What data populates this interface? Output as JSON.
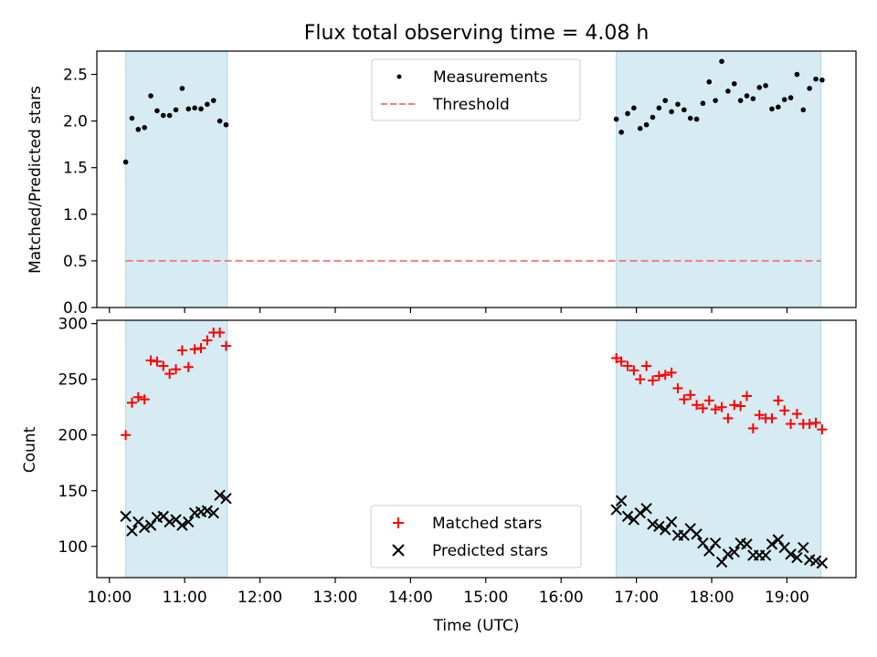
{
  "title": "Flux total observing time = 4.08 h",
  "xlabel": "Time (UTC)",
  "xticks": [
    "10:00",
    "11:00",
    "12:00",
    "13:00",
    "14:00",
    "15:00",
    "16:00",
    "17:00",
    "18:00",
    "19:00"
  ],
  "colors": {
    "shade": "#add8e6",
    "threshold": "#f08080",
    "matched": "#ff0000",
    "predicted": "#000000",
    "measurement": "#000000"
  },
  "chart_data": [
    {
      "type": "scatter",
      "ylabel": "Matched/Predicted stars",
      "xlim": [
        "09:50",
        "19:55"
      ],
      "ylim": [
        0,
        2.75
      ],
      "yticks": [
        "0.0",
        "0.5",
        "1.0",
        "1.5",
        "2.0",
        "2.5"
      ],
      "legend": {
        "placement": "upper center",
        "entries": [
          "Measurements",
          "Threshold"
        ]
      },
      "shaded_intervals": [
        [
          "10:13",
          "11:34"
        ],
        [
          "16:44",
          "19:27"
        ]
      ],
      "threshold": 0.5,
      "series": [
        {
          "name": "Measurements",
          "x": [
            "10:13",
            "10:18",
            "10:23",
            "10:28",
            "10:33",
            "10:38",
            "10:43",
            "10:48",
            "10:53",
            "10:58",
            "11:03",
            "11:08",
            "11:13",
            "11:18",
            "11:23",
            "11:28",
            "11:33",
            "16:44",
            "16:48",
            "16:53",
            "16:58",
            "17:03",
            "17:08",
            "17:13",
            "17:18",
            "17:23",
            "17:28",
            "17:33",
            "17:38",
            "17:43",
            "17:48",
            "17:53",
            "17:58",
            "18:03",
            "18:08",
            "18:13",
            "18:18",
            "18:23",
            "18:28",
            "18:33",
            "18:38",
            "18:43",
            "18:48",
            "18:53",
            "18:58",
            "19:03",
            "19:08",
            "19:13",
            "19:18",
            "19:23",
            "19:28"
          ],
          "y": [
            1.56,
            2.03,
            1.91,
            1.93,
            2.27,
            2.11,
            2.06,
            2.06,
            2.12,
            2.35,
            2.13,
            2.14,
            2.13,
            2.18,
            2.22,
            2.0,
            1.96,
            2.02,
            1.88,
            2.08,
            2.14,
            1.92,
            1.96,
            2.04,
            2.14,
            2.22,
            2.1,
            2.18,
            2.12,
            2.03,
            2.02,
            2.19,
            2.42,
            2.22,
            2.64,
            2.32,
            2.4,
            2.22,
            2.27,
            2.24,
            2.36,
            2.38,
            2.13,
            2.15,
            2.23,
            2.25,
            2.5,
            2.12,
            2.35,
            2.45,
            2.44
          ]
        }
      ]
    },
    {
      "type": "scatter",
      "ylabel": "Count",
      "xlim": [
        "09:50",
        "19:55"
      ],
      "ylim": [
        72,
        303
      ],
      "yticks": [
        "100",
        "150",
        "200",
        "250",
        "300"
      ],
      "legend": {
        "placement": "lower center",
        "entries": [
          "Matched stars",
          "Predicted stars"
        ]
      },
      "shaded_intervals": [
        [
          "10:13",
          "11:34"
        ],
        [
          "16:44",
          "19:27"
        ]
      ],
      "series": [
        {
          "name": "Matched stars",
          "x": [
            "10:13",
            "10:18",
            "10:23",
            "10:28",
            "10:33",
            "10:38",
            "10:43",
            "10:48",
            "10:53",
            "10:58",
            "11:03",
            "11:08",
            "11:13",
            "11:18",
            "11:23",
            "11:28",
            "11:33",
            "16:44",
            "16:48",
            "16:53",
            "16:58",
            "17:03",
            "17:08",
            "17:13",
            "17:18",
            "17:23",
            "17:28",
            "17:33",
            "17:38",
            "17:43",
            "17:48",
            "17:53",
            "17:58",
            "18:03",
            "18:08",
            "18:13",
            "18:18",
            "18:23",
            "18:28",
            "18:33",
            "18:38",
            "18:43",
            "18:48",
            "18:53",
            "18:58",
            "19:03",
            "19:08",
            "19:13",
            "19:18",
            "19:23",
            "19:28"
          ],
          "y": [
            200,
            229,
            234,
            232,
            267,
            266,
            262,
            255,
            259,
            276,
            261,
            277,
            278,
            285,
            292,
            292,
            280,
            269,
            266,
            262,
            258,
            250,
            262,
            249,
            253,
            254,
            256,
            242,
            232,
            236,
            227,
            224,
            231,
            223,
            225,
            215,
            227,
            226,
            235,
            206,
            218,
            215,
            215,
            231,
            222,
            210,
            219,
            210,
            210,
            211,
            205
          ]
        },
        {
          "name": "Predicted stars",
          "x": [
            "10:13",
            "10:18",
            "10:23",
            "10:28",
            "10:33",
            "10:38",
            "10:43",
            "10:48",
            "10:53",
            "10:58",
            "11:03",
            "11:08",
            "11:13",
            "11:18",
            "11:23",
            "11:28",
            "11:33",
            "16:44",
            "16:48",
            "16:53",
            "16:58",
            "17:03",
            "17:08",
            "17:13",
            "17:18",
            "17:23",
            "17:28",
            "17:33",
            "17:38",
            "17:43",
            "17:48",
            "17:53",
            "17:58",
            "18:03",
            "18:08",
            "18:13",
            "18:18",
            "18:23",
            "18:28",
            "18:33",
            "18:38",
            "18:43",
            "18:48",
            "18:53",
            "18:58",
            "19:03",
            "19:08",
            "19:13",
            "19:18",
            "19:23",
            "19:28"
          ],
          "y": [
            127,
            114,
            122,
            117,
            119,
            126,
            127,
            122,
            124,
            119,
            122,
            130,
            131,
            132,
            130,
            146,
            143,
            133,
            141,
            127,
            124,
            130,
            134,
            120,
            118,
            115,
            122,
            110,
            110,
            116,
            111,
            103,
            96,
            103,
            86,
            93,
            95,
            103,
            102,
            92,
            92,
            92,
            102,
            106,
            99,
            93,
            90,
            99,
            88,
            87,
            85
          ]
        }
      ]
    }
  ]
}
